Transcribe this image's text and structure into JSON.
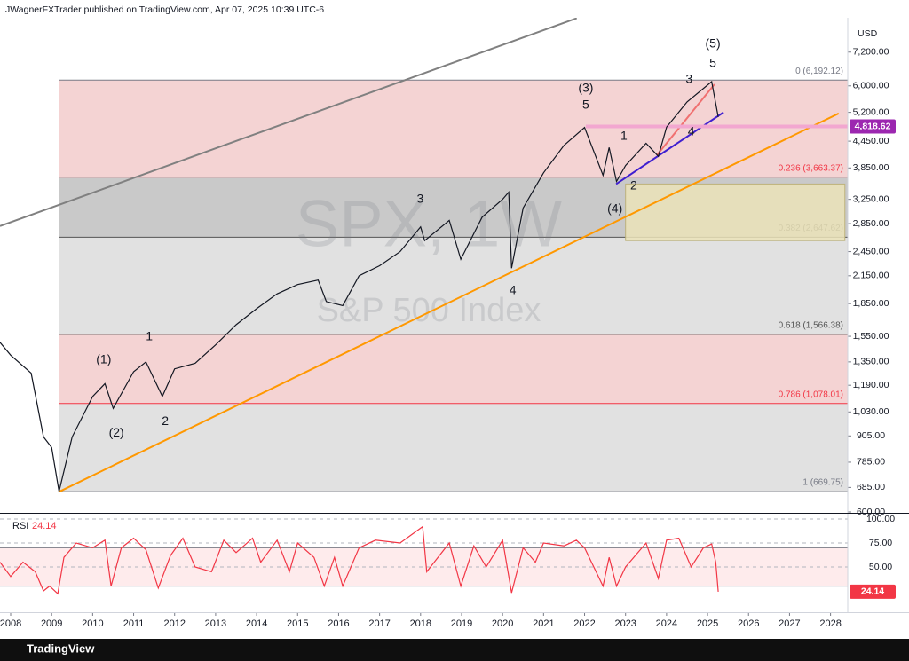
{
  "header": {
    "publisher": "JWagnerFXTrader published on TradingView.com, Apr 07, 2025 10:39 UTC-6"
  },
  "footer": {
    "brand": "TradingView"
  },
  "chart_data": [
    {
      "type": "line",
      "title": "SPX, 1W",
      "subtitle": "S&P 500 Index",
      "currency": "USD",
      "log_scale": true,
      "color": "#131722",
      "x": [
        2007.74,
        2008.0,
        2008.5,
        2008.8,
        2009.0,
        2009.18,
        2009.5,
        2010.0,
        2010.3,
        2010.5,
        2011.0,
        2011.3,
        2011.7,
        2012.0,
        2012.5,
        2013.0,
        2013.5,
        2014.0,
        2014.5,
        2015.0,
        2015.5,
        2015.7,
        2016.1,
        2016.5,
        2017.0,
        2017.5,
        2018.0,
        2018.1,
        2018.7,
        2018.98,
        2019.5,
        2020.0,
        2020.15,
        2020.22,
        2020.5,
        2021.0,
        2021.5,
        2022.0,
        2022.45,
        2022.6,
        2022.78,
        2023.0,
        2023.5,
        2023.8,
        2024.0,
        2024.5,
        2025.1,
        2025.26
      ],
      "values": [
        1500,
        1400,
        1270,
        900,
        850,
        670,
        900,
        1120,
        1200,
        1050,
        1280,
        1350,
        1120,
        1300,
        1340,
        1480,
        1650,
        1800,
        1950,
        2050,
        2100,
        1870,
        1830,
        2150,
        2270,
        2450,
        2800,
        2600,
        2900,
        2350,
        2950,
        3250,
        3380,
        2240,
        3100,
        3750,
        4350,
        4790,
        3700,
        4300,
        3580,
        3900,
        4400,
        4100,
        4800,
        5500,
        6140,
        5070
      ],
      "xlim": [
        2007.74,
        2028.42
      ],
      "ylim": [
        600,
        8670
      ],
      "xticks": [
        2008,
        2009,
        2010,
        2011,
        2012,
        2013,
        2014,
        2015,
        2016,
        2017,
        2018,
        2019,
        2020,
        2021,
        2022,
        2023,
        2024,
        2025,
        2026,
        2027,
        2028
      ],
      "yticks": [
        {
          "value": 7200,
          "label": "7,200.00"
        },
        {
          "value": 6000,
          "label": "6,000.00"
        },
        {
          "value": 5200,
          "label": "5,200.00"
        },
        {
          "value": 4450,
          "label": "4,450.00"
        },
        {
          "value": 3850,
          "label": "3,850.00"
        },
        {
          "value": 3250,
          "label": "3,250.00"
        },
        {
          "value": 2850,
          "label": "2,850.00"
        },
        {
          "value": 2450,
          "label": "2,450.00"
        },
        {
          "value": 2150,
          "label": "2,150.00"
        },
        {
          "value": 1850,
          "label": "1,850.00"
        },
        {
          "value": 1550,
          "label": "1,550.00"
        },
        {
          "value": 1350,
          "label": "1,350.00"
        },
        {
          "value": 1190,
          "label": "1,190.00"
        },
        {
          "value": 1030,
          "label": "1,030.00"
        },
        {
          "value": 905,
          "label": "905.00"
        },
        {
          "value": 785,
          "label": "785.00"
        },
        {
          "value": 685,
          "label": "685.00"
        },
        {
          "value": 600,
          "label": "600.00"
        }
      ],
      "last_value": 4818.62,
      "last_value_label": "4,818.62",
      "last_value_color": "#9c27b0",
      "fib_start": 2009.19,
      "fib_levels": [
        {
          "value": 6192.12,
          "label": "0 (6,192.12)",
          "color": "#787b86",
          "band_color": "#f4d3d3"
        },
        {
          "value": 3663.37,
          "label": "0.236 (3,663.37)",
          "color": "#f23645",
          "band_color": "#c9c9c9"
        },
        {
          "value": 2647.62,
          "label": "0.382 (2,647.62)",
          "color": "#555555",
          "band_color": "#e1e1e1"
        },
        {
          "value": 1566.38,
          "label": "0.618 (1,566.38)",
          "color": "#555555",
          "band_color": "#f4d3d3"
        },
        {
          "value": 1078.01,
          "label": "0.786 (1,078.01)",
          "color": "#f23645",
          "band_color": "#e1e1e1"
        },
        {
          "value": 669.75,
          "label": "1 (669.75)",
          "color": "#787b86"
        }
      ],
      "trend_lines": [
        {
          "x": [
            2007.74,
            2021.81
          ],
          "y": [
            2812,
            8650
          ],
          "color": "#808080",
          "width": 2
        },
        {
          "x": [
            2009.19,
            2028.2
          ],
          "y": [
            669.75,
            5170
          ],
          "color": "#ff9800",
          "width": 2
        },
        {
          "x": [
            2022.77,
            2025.39
          ],
          "y": [
            3530,
            5200
          ],
          "color": "#3f1fd0",
          "width": 2
        },
        {
          "x": [
            2023.76,
            2025.17
          ],
          "y": [
            4120,
            6050
          ],
          "color": "#f07070",
          "width": 2
        },
        {
          "x": [
            2022.03,
            2028.42
          ],
          "y": [
            4818.62,
            4818.62
          ],
          "color": "#f2a7d0",
          "width": 4
        }
      ],
      "box": {
        "x": [
          2023.0,
          2028.35
        ],
        "y": [
          2600,
          3530
        ],
        "color": "#ebe3b8",
        "stroke": "#bdb27a"
      },
      "annotations": [
        {
          "text": "(5)",
          "x": 2025.13,
          "y": 7520
        },
        {
          "text": "5",
          "x": 2025.13,
          "y": 6760
        },
        {
          "text": "3",
          "x": 2024.55,
          "y": 6200
        },
        {
          "text": "(3)",
          "x": 2022.03,
          "y": 5910
        },
        {
          "text": "5",
          "x": 2022.03,
          "y": 5400
        },
        {
          "text": "1",
          "x": 2022.96,
          "y": 4560
        },
        {
          "text": "4",
          "x": 2024.6,
          "y": 4680
        },
        {
          "text": "2",
          "x": 2023.2,
          "y": 3490
        },
        {
          "text": "(4)",
          "x": 2022.74,
          "y": 3080
        },
        {
          "text": "3",
          "x": 2017.99,
          "y": 3245
        },
        {
          "text": "4",
          "x": 2020.25,
          "y": 1980
        },
        {
          "text": "1",
          "x": 2011.38,
          "y": 1543
        },
        {
          "text": "(1)",
          "x": 2010.27,
          "y": 1362
        },
        {
          "text": "(2)",
          "x": 2010.58,
          "y": 918
        },
        {
          "text": "2",
          "x": 2011.77,
          "y": 978
        }
      ]
    },
    {
      "type": "line",
      "title": "RSI",
      "color": "#f23645",
      "x": [
        2007.74,
        2008.0,
        2008.3,
        2008.6,
        2008.8,
        2008.95,
        2009.15,
        2009.3,
        2009.6,
        2010.0,
        2010.3,
        2010.45,
        2010.7,
        2011.0,
        2011.3,
        2011.6,
        2011.9,
        2012.2,
        2012.5,
        2012.9,
        2013.2,
        2013.5,
        2013.9,
        2014.1,
        2014.5,
        2014.8,
        2015.0,
        2015.4,
        2015.65,
        2015.9,
        2016.1,
        2016.5,
        2016.9,
        2017.5,
        2018.05,
        2018.15,
        2018.7,
        2018.98,
        2019.3,
        2019.6,
        2020.0,
        2020.22,
        2020.5,
        2020.8,
        2021.0,
        2021.5,
        2021.8,
        2022.0,
        2022.45,
        2022.6,
        2022.78,
        2023.0,
        2023.5,
        2023.8,
        2024.0,
        2024.3,
        2024.6,
        2024.9,
        2025.1,
        2025.2,
        2025.26
      ],
      "values": [
        55,
        40,
        55,
        45,
        25,
        30,
        22,
        60,
        75,
        70,
        78,
        30,
        70,
        80,
        68,
        28,
        62,
        80,
        50,
        45,
        78,
        65,
        80,
        55,
        78,
        45,
        75,
        60,
        30,
        60,
        30,
        70,
        78,
        75,
        92,
        45,
        75,
        30,
        72,
        50,
        78,
        23,
        70,
        55,
        75,
        72,
        78,
        70,
        30,
        60,
        30,
        50,
        75,
        38,
        78,
        80,
        50,
        70,
        74,
        55,
        24.14
      ],
      "ylim": [
        0,
        100
      ],
      "yticks": [
        {
          "value": 100,
          "label": "100.00"
        },
        {
          "value": 75,
          "label": "75.00"
        },
        {
          "value": 50,
          "label": "50.00"
        }
      ],
      "bands": [
        30,
        70
      ]
    }
  ]
}
